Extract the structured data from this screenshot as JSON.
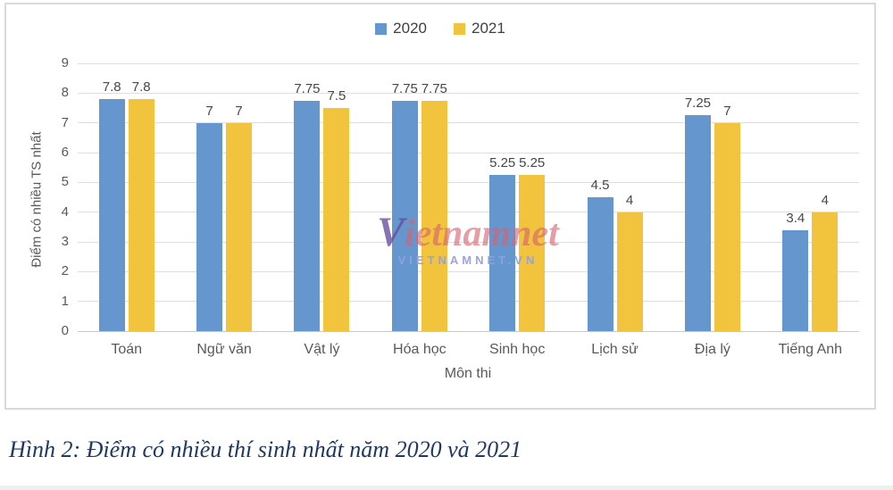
{
  "page": {
    "caption": "Hình 2: Điểm có nhiều thí sinh nhất năm 2020 và 2021"
  },
  "watermark": {
    "logo_text": "Vietnamnet",
    "sub_text": "VIETNAMNET.VN"
  },
  "colors": {
    "series_2020": "#6597CE",
    "series_2021": "#F2C43D",
    "gridline": "#DEDEDE",
    "axis_text": "#595959",
    "value_label_text": "#474747",
    "caption_text": "#1F3864",
    "panel_border": "#D9D9D9"
  },
  "chart_data": {
    "type": "bar",
    "title": "",
    "categories": [
      "Toán",
      "Ngữ văn",
      "Vật lý",
      "Hóa học",
      "Sinh học",
      "Lịch sử",
      "Địa lý",
      "Tiếng Anh"
    ],
    "series": [
      {
        "name": "2020",
        "color": "#6597CE",
        "values": [
          7.8,
          7,
          7.75,
          7.75,
          5.25,
          4.5,
          7.25,
          3.4
        ],
        "labels": [
          "7.8",
          "7",
          "7.75",
          "7.75",
          "5.25",
          "4.5",
          "7.25",
          "3.4"
        ]
      },
      {
        "name": "2021",
        "color": "#F2C43D",
        "values": [
          7.8,
          7,
          7.5,
          7.75,
          5.25,
          4,
          7,
          4
        ],
        "labels": [
          "7.8",
          "7",
          "7.5",
          "7.75",
          "5.25",
          "4",
          "7",
          "4"
        ]
      }
    ],
    "xlabel": "Môn thi",
    "ylabel": "Điểm có nhiều TS nhất",
    "ylim": [
      0,
      9
    ],
    "yticks": [
      0,
      1,
      2,
      3,
      4,
      5,
      6,
      7,
      8,
      9
    ],
    "grid": true,
    "legend_position": "top-center"
  }
}
